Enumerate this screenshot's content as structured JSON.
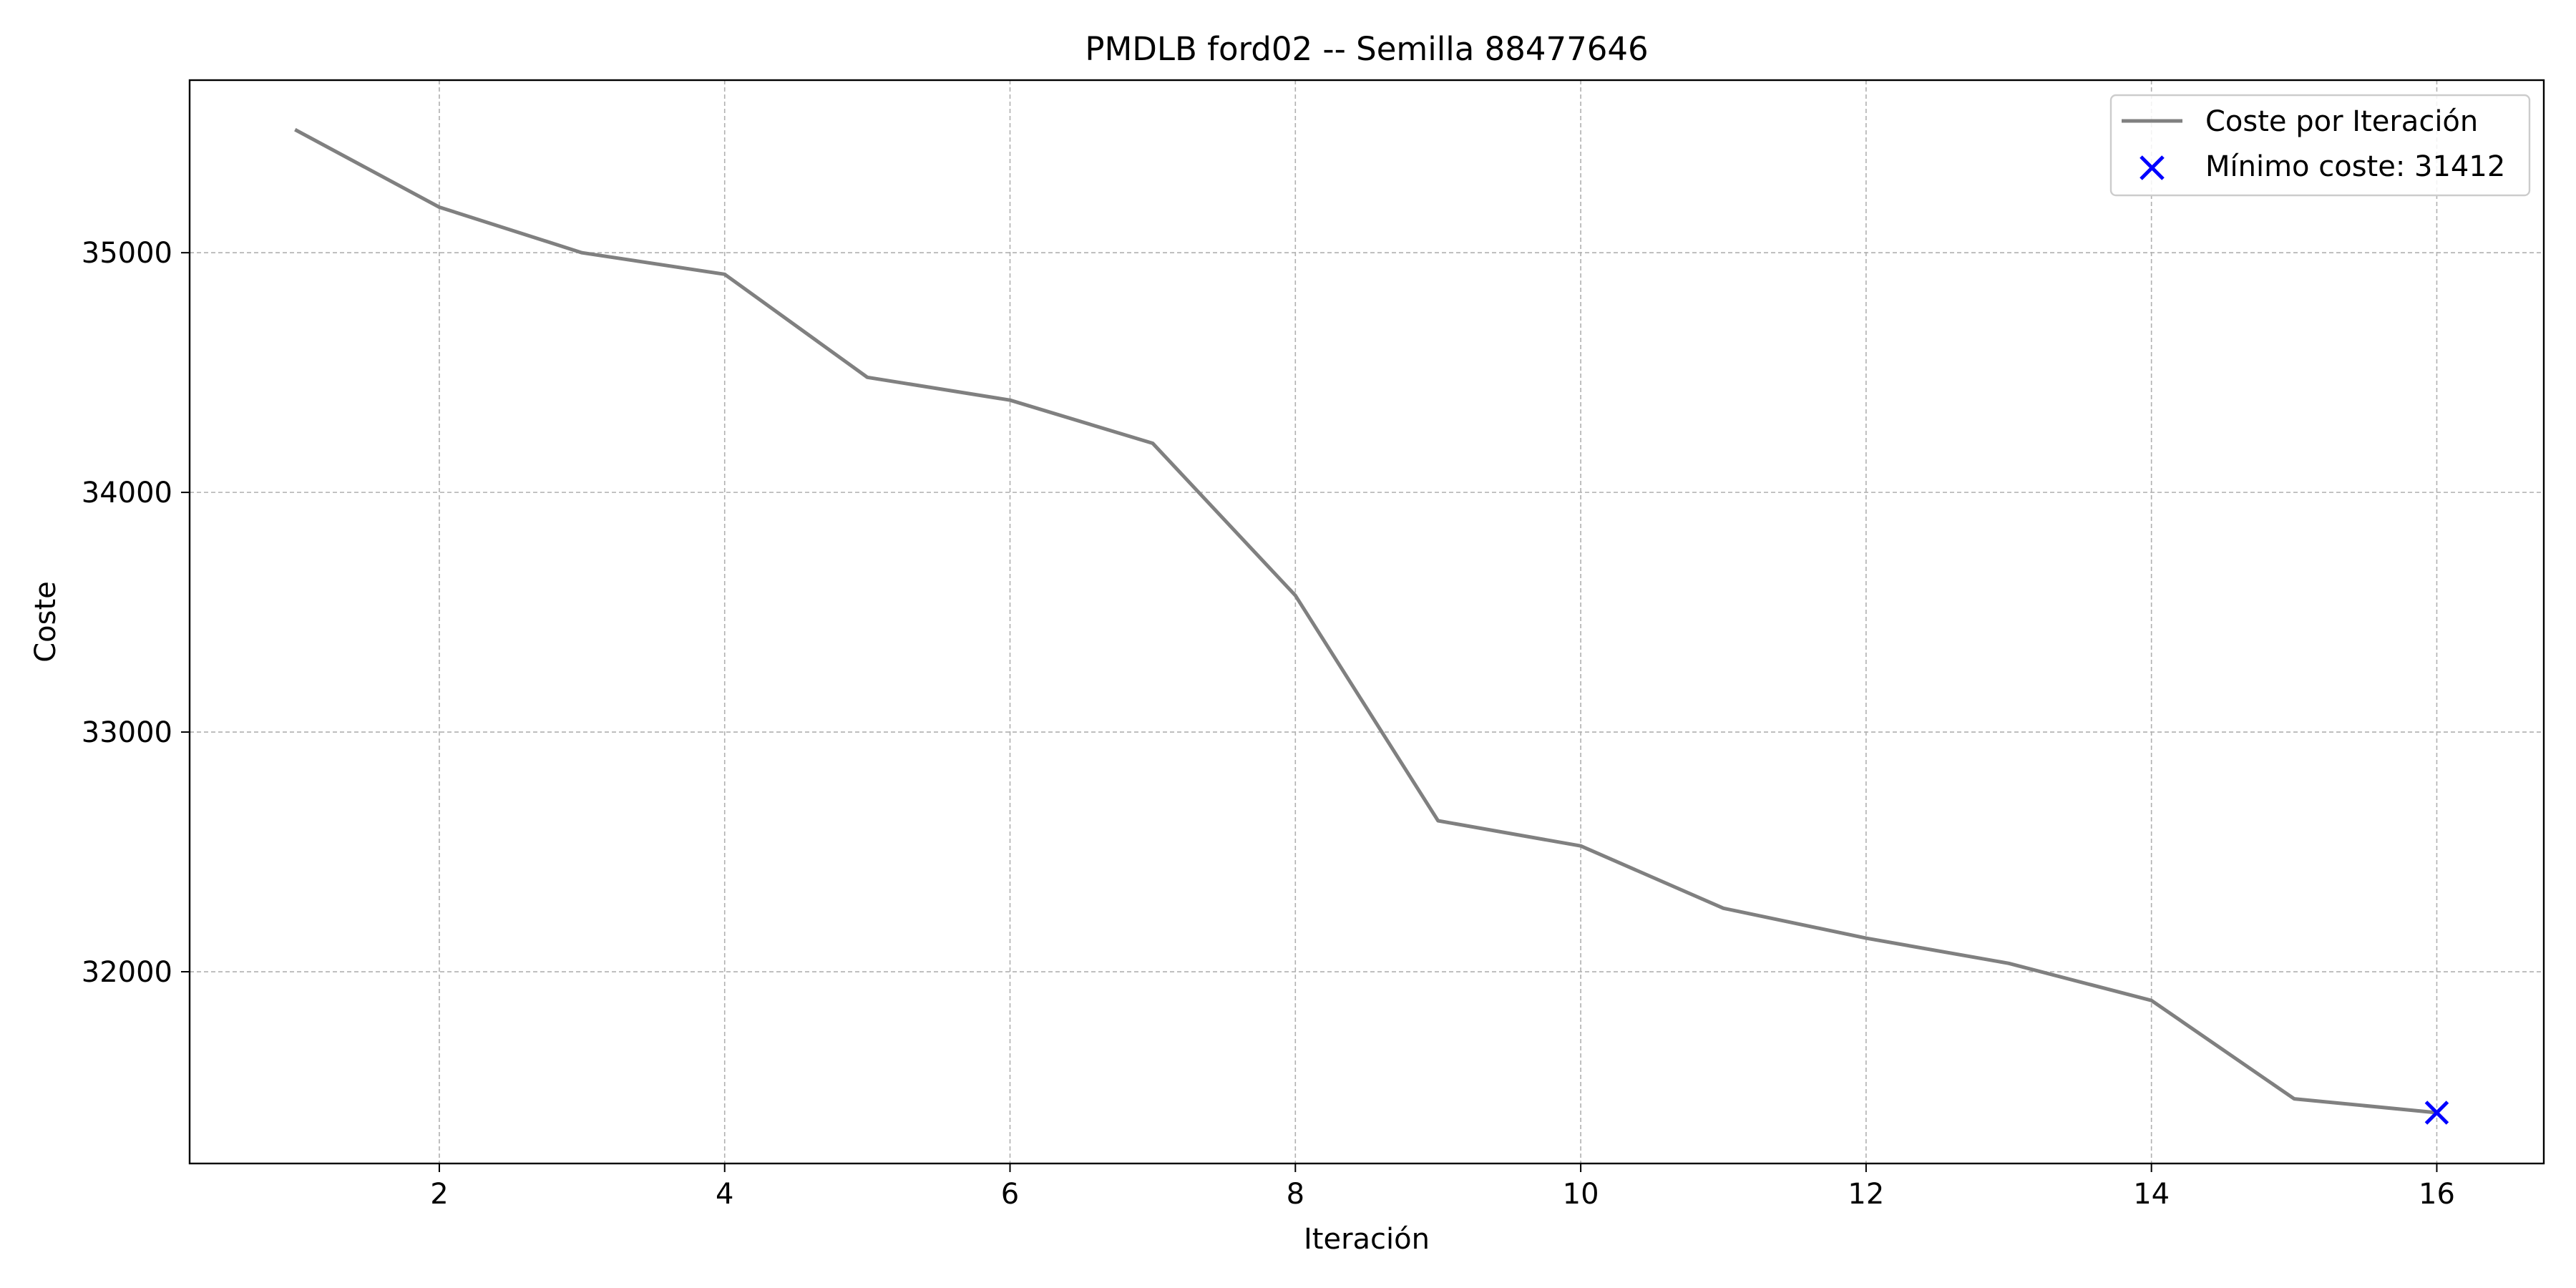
{
  "chart_data": {
    "type": "line",
    "title": "PMDLB ford02 -- Semilla 88477646",
    "xlabel": "Iteración",
    "ylabel": "Coste",
    "xlim": [
      0.25,
      16.75
    ],
    "ylim": [
      31200,
      35720
    ],
    "xticks": [
      2,
      4,
      6,
      8,
      10,
      12,
      14,
      16
    ],
    "yticks": [
      32000,
      33000,
      34000,
      35000
    ],
    "grid": true,
    "legend_position": "top-right",
    "series": [
      {
        "name": "Coste por Iteración",
        "color": "#808080",
        "x": [
          1,
          2,
          3,
          4,
          5,
          6,
          7,
          8,
          9,
          10,
          11,
          12,
          13,
          14,
          15,
          16
        ],
        "y": [
          35510,
          35190,
          35000,
          34910,
          34480,
          34385,
          34205,
          33570,
          32630,
          32525,
          32265,
          32140,
          32035,
          31880,
          31470,
          31412
        ]
      }
    ],
    "markers": [
      {
        "name": "Mínimo coste: 31412",
        "type": "x",
        "color": "#0000ff",
        "x": 16,
        "y": 31412
      }
    ]
  }
}
